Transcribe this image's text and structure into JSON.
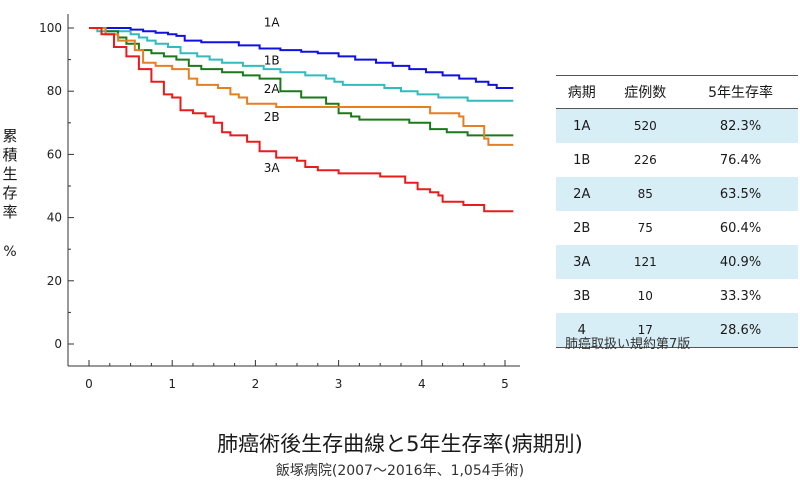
{
  "chart_data": {
    "type": "line",
    "title": "肺癌術後生存曲線と5年生存率(病期別)",
    "subtitle": "飯塚病院(2007〜2016年、1,054手術)",
    "ylabel": "累積生存率",
    "yunit": "%",
    "xlabel": "",
    "xlim": [
      0,
      5.1
    ],
    "ylim": [
      0,
      100
    ],
    "x_ticks": [
      0,
      1,
      2,
      3,
      4,
      5
    ],
    "y_ticks": [
      0,
      20,
      40,
      60,
      80,
      100
    ],
    "grid": false,
    "series": [
      {
        "name": "1A",
        "color": "#1010e0",
        "points": [
          [
            0,
            100
          ],
          [
            0.35,
            100
          ],
          [
            0.5,
            99.5
          ],
          [
            0.65,
            99
          ],
          [
            0.8,
            98.5
          ],
          [
            0.95,
            98
          ],
          [
            1.05,
            97.5
          ],
          [
            1.15,
            96
          ],
          [
            1.35,
            95.5
          ],
          [
            1.6,
            95.5
          ],
          [
            1.8,
            94.5
          ],
          [
            2.05,
            93.5
          ],
          [
            2.3,
            93
          ],
          [
            2.55,
            92.5
          ],
          [
            2.75,
            92
          ],
          [
            3.0,
            91
          ],
          [
            3.2,
            90
          ],
          [
            3.45,
            89
          ],
          [
            3.65,
            88
          ],
          [
            3.85,
            87
          ],
          [
            4.05,
            86
          ],
          [
            4.25,
            85
          ],
          [
            4.45,
            84
          ],
          [
            4.65,
            83
          ],
          [
            4.8,
            82
          ],
          [
            4.9,
            81
          ],
          [
            5.1,
            81
          ]
        ]
      },
      {
        "name": "1B",
        "color": "#30bcbc",
        "points": [
          [
            0,
            100
          ],
          [
            0.1,
            99
          ],
          [
            0.3,
            99
          ],
          [
            0.5,
            98
          ],
          [
            0.6,
            97
          ],
          [
            0.7,
            96
          ],
          [
            0.8,
            95
          ],
          [
            0.95,
            94
          ],
          [
            1.1,
            92
          ],
          [
            1.3,
            91
          ],
          [
            1.45,
            90
          ],
          [
            1.6,
            89
          ],
          [
            1.85,
            88
          ],
          [
            2.1,
            87
          ],
          [
            2.3,
            86
          ],
          [
            2.6,
            85
          ],
          [
            2.85,
            84
          ],
          [
            2.95,
            83
          ],
          [
            3.05,
            82
          ],
          [
            3.55,
            81
          ],
          [
            3.75,
            80
          ],
          [
            3.95,
            79
          ],
          [
            4.2,
            78
          ],
          [
            4.55,
            77
          ],
          [
            5.1,
            77
          ]
        ]
      },
      {
        "name": "2A",
        "color": "#1a7a1a",
        "points": [
          [
            0,
            100
          ],
          [
            0.2,
            99
          ],
          [
            0.35,
            97
          ],
          [
            0.45,
            95
          ],
          [
            0.6,
            93
          ],
          [
            0.75,
            92
          ],
          [
            0.9,
            91
          ],
          [
            1.05,
            90
          ],
          [
            1.2,
            88
          ],
          [
            1.35,
            87
          ],
          [
            1.6,
            86
          ],
          [
            1.85,
            85
          ],
          [
            2.05,
            84
          ],
          [
            2.3,
            80
          ],
          [
            2.55,
            78
          ],
          [
            2.85,
            76
          ],
          [
            3.0,
            73
          ],
          [
            3.15,
            72
          ],
          [
            3.25,
            71
          ],
          [
            3.5,
            71
          ],
          [
            3.85,
            70
          ],
          [
            4.1,
            68
          ],
          [
            4.3,
            67
          ],
          [
            4.55,
            66
          ],
          [
            5.1,
            66
          ]
        ]
      },
      {
        "name": "2B",
        "color": "#e67e22",
        "points": [
          [
            0,
            100
          ],
          [
            0.2,
            98
          ],
          [
            0.35,
            96
          ],
          [
            0.55,
            93
          ],
          [
            0.65,
            89
          ],
          [
            0.8,
            88
          ],
          [
            1.0,
            87
          ],
          [
            1.2,
            84
          ],
          [
            1.3,
            82
          ],
          [
            1.55,
            81
          ],
          [
            1.7,
            79
          ],
          [
            1.8,
            78
          ],
          [
            1.9,
            76
          ],
          [
            2.25,
            75
          ],
          [
            3.85,
            75
          ],
          [
            4.1,
            73
          ],
          [
            4.45,
            72
          ],
          [
            4.5,
            69
          ],
          [
            4.75,
            65
          ],
          [
            4.8,
            63
          ],
          [
            5.1,
            63
          ]
        ]
      },
      {
        "name": "3A",
        "color": "#e81c1c",
        "points": [
          [
            0,
            100
          ],
          [
            0.15,
            98
          ],
          [
            0.3,
            94
          ],
          [
            0.45,
            91
          ],
          [
            0.6,
            87
          ],
          [
            0.75,
            83
          ],
          [
            0.9,
            79
          ],
          [
            1.0,
            78
          ],
          [
            1.1,
            74
          ],
          [
            1.25,
            73
          ],
          [
            1.4,
            72
          ],
          [
            1.5,
            70
          ],
          [
            1.6,
            67
          ],
          [
            1.7,
            66
          ],
          [
            1.9,
            64
          ],
          [
            2.05,
            61
          ],
          [
            2.25,
            59
          ],
          [
            2.5,
            58
          ],
          [
            2.6,
            56
          ],
          [
            2.75,
            55
          ],
          [
            3.0,
            54
          ],
          [
            3.5,
            53
          ],
          [
            3.8,
            51
          ],
          [
            3.95,
            49
          ],
          [
            4.1,
            48
          ],
          [
            4.2,
            47
          ],
          [
            4.25,
            45
          ],
          [
            4.5,
            44
          ],
          [
            4.75,
            42
          ],
          [
            5.1,
            42
          ]
        ]
      }
    ],
    "annotations": [
      {
        "text": "1A",
        "x": 2.1,
        "y": 100.5
      },
      {
        "text": "1B",
        "x": 2.1,
        "y": 88.5
      },
      {
        "text": "2A",
        "x": 2.1,
        "y": 79.5
      },
      {
        "text": "2B",
        "x": 2.1,
        "y": 70.5
      },
      {
        "text": "3A",
        "x": 2.1,
        "y": 54.5
      }
    ]
  },
  "table": {
    "headers": {
      "stage": "病期",
      "cases": "症例数",
      "rate": "5年生存率"
    },
    "rows": [
      {
        "stage": "1A",
        "cases": "520",
        "rate": "82.3%"
      },
      {
        "stage": "1B",
        "cases": "226",
        "rate": "76.4%"
      },
      {
        "stage": "2A",
        "cases": "85",
        "rate": "63.5%"
      },
      {
        "stage": "2B",
        "cases": "75",
        "rate": "60.4%"
      },
      {
        "stage": "3A",
        "cases": "121",
        "rate": "40.9%"
      },
      {
        "stage": "3B",
        "cases": "10",
        "rate": "33.3%"
      },
      {
        "stage": "4",
        "cases": "17",
        "rate": "28.6%"
      }
    ],
    "note": "肺癌取扱い規約第7版"
  }
}
